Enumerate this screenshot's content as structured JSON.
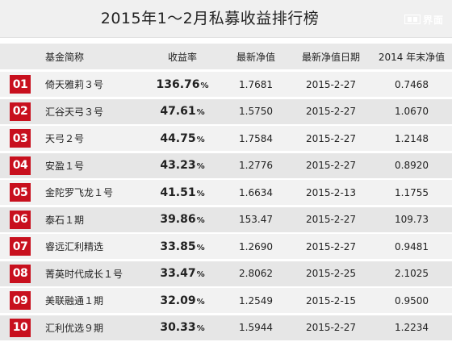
{
  "title": "2015年1～2月私募收益排行榜",
  "logo": {
    "text": "界面"
  },
  "chart_data": {
    "type": "table",
    "columns": [
      "基金简称",
      "收益率",
      "最新净值",
      "最新净值日期",
      "2014 年末净值"
    ],
    "rows": [
      {
        "rank": "01",
        "name": "倚天雅莉３号",
        "return": "136.76",
        "nav": "1.7681",
        "date": "2015-2-27",
        "end2014": "0.7468"
      },
      {
        "rank": "02",
        "name": "汇谷天弓３号",
        "return": "47.61",
        "nav": "1.5750",
        "date": "2015-2-27",
        "end2014": "1.0670"
      },
      {
        "rank": "03",
        "name": "天弓２号",
        "return": "44.75",
        "nav": "1.7584",
        "date": "2015-2-27",
        "end2014": "1.2148"
      },
      {
        "rank": "04",
        "name": "安盈１号",
        "return": "43.23",
        "nav": "1.2776",
        "date": "2015-2-27",
        "end2014": "0.8920"
      },
      {
        "rank": "05",
        "name": "金陀罗飞龙１号",
        "return": "41.51",
        "nav": "1.6634",
        "date": "2015-2-13",
        "end2014": "1.1755"
      },
      {
        "rank": "06",
        "name": "泰石１期",
        "return": "39.86",
        "nav": "153.47",
        "date": "2015-2-27",
        "end2014": "109.73"
      },
      {
        "rank": "07",
        "name": "睿远汇利精选",
        "return": "33.85",
        "nav": "1.2690",
        "date": "2015-2-27",
        "end2014": "0.9481"
      },
      {
        "rank": "08",
        "name": "菁英时代成长１号",
        "return": "33.47",
        "nav": "2.8062",
        "date": "2015-2-25",
        "end2014": "2.1025"
      },
      {
        "rank": "09",
        "name": "美联融通１期",
        "return": "32.09",
        "nav": "1.2549",
        "date": "2015-2-15",
        "end2014": "0.9500"
      },
      {
        "rank": "10",
        "name": "汇利优选９期",
        "return": "30.33",
        "nav": "1.5944",
        "date": "2015-2-27",
        "end2014": "1.2234"
      }
    ],
    "percent_sign": "%"
  },
  "colors": {
    "rank_badge": "#c8101e",
    "row_light": "#f2f2f2",
    "row_dark": "#e6e6e6",
    "header_bg": "#e9e9e9",
    "title_bg": "#f0f0f0"
  }
}
